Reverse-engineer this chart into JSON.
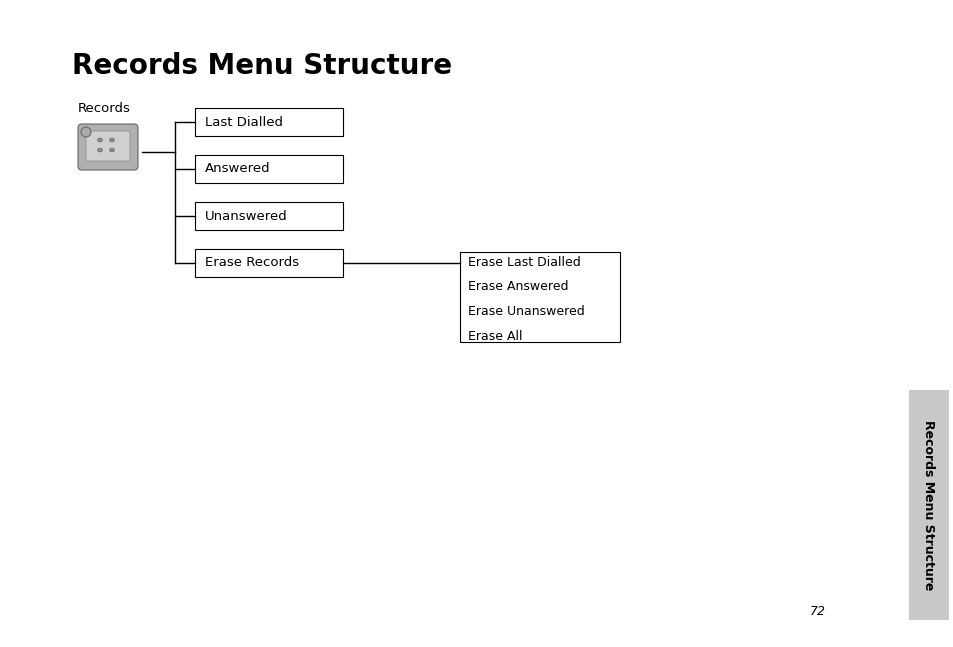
{
  "title": "Records Menu Structure",
  "title_fontsize": 20,
  "title_fontweight": "bold",
  "background_color": "#ffffff",
  "icon_label": "Records",
  "boxes_level1": [
    {
      "label": "Last Dialled"
    },
    {
      "label": "Answered"
    },
    {
      "label": "Unanswered"
    },
    {
      "label": "Erase Records"
    }
  ],
  "box_level2_lines": [
    "Erase Last Dialled",
    "Erase Answered",
    "Erase Unanswered",
    "Erase All"
  ],
  "sidebar_label": "Records Menu Structure",
  "sidebar_bg": "#c8c8c8",
  "page_number": "72",
  "font_size_box": 9.5,
  "font_size_label": 9.5,
  "font_size_sidebar": 9,
  "font_size_page": 9
}
